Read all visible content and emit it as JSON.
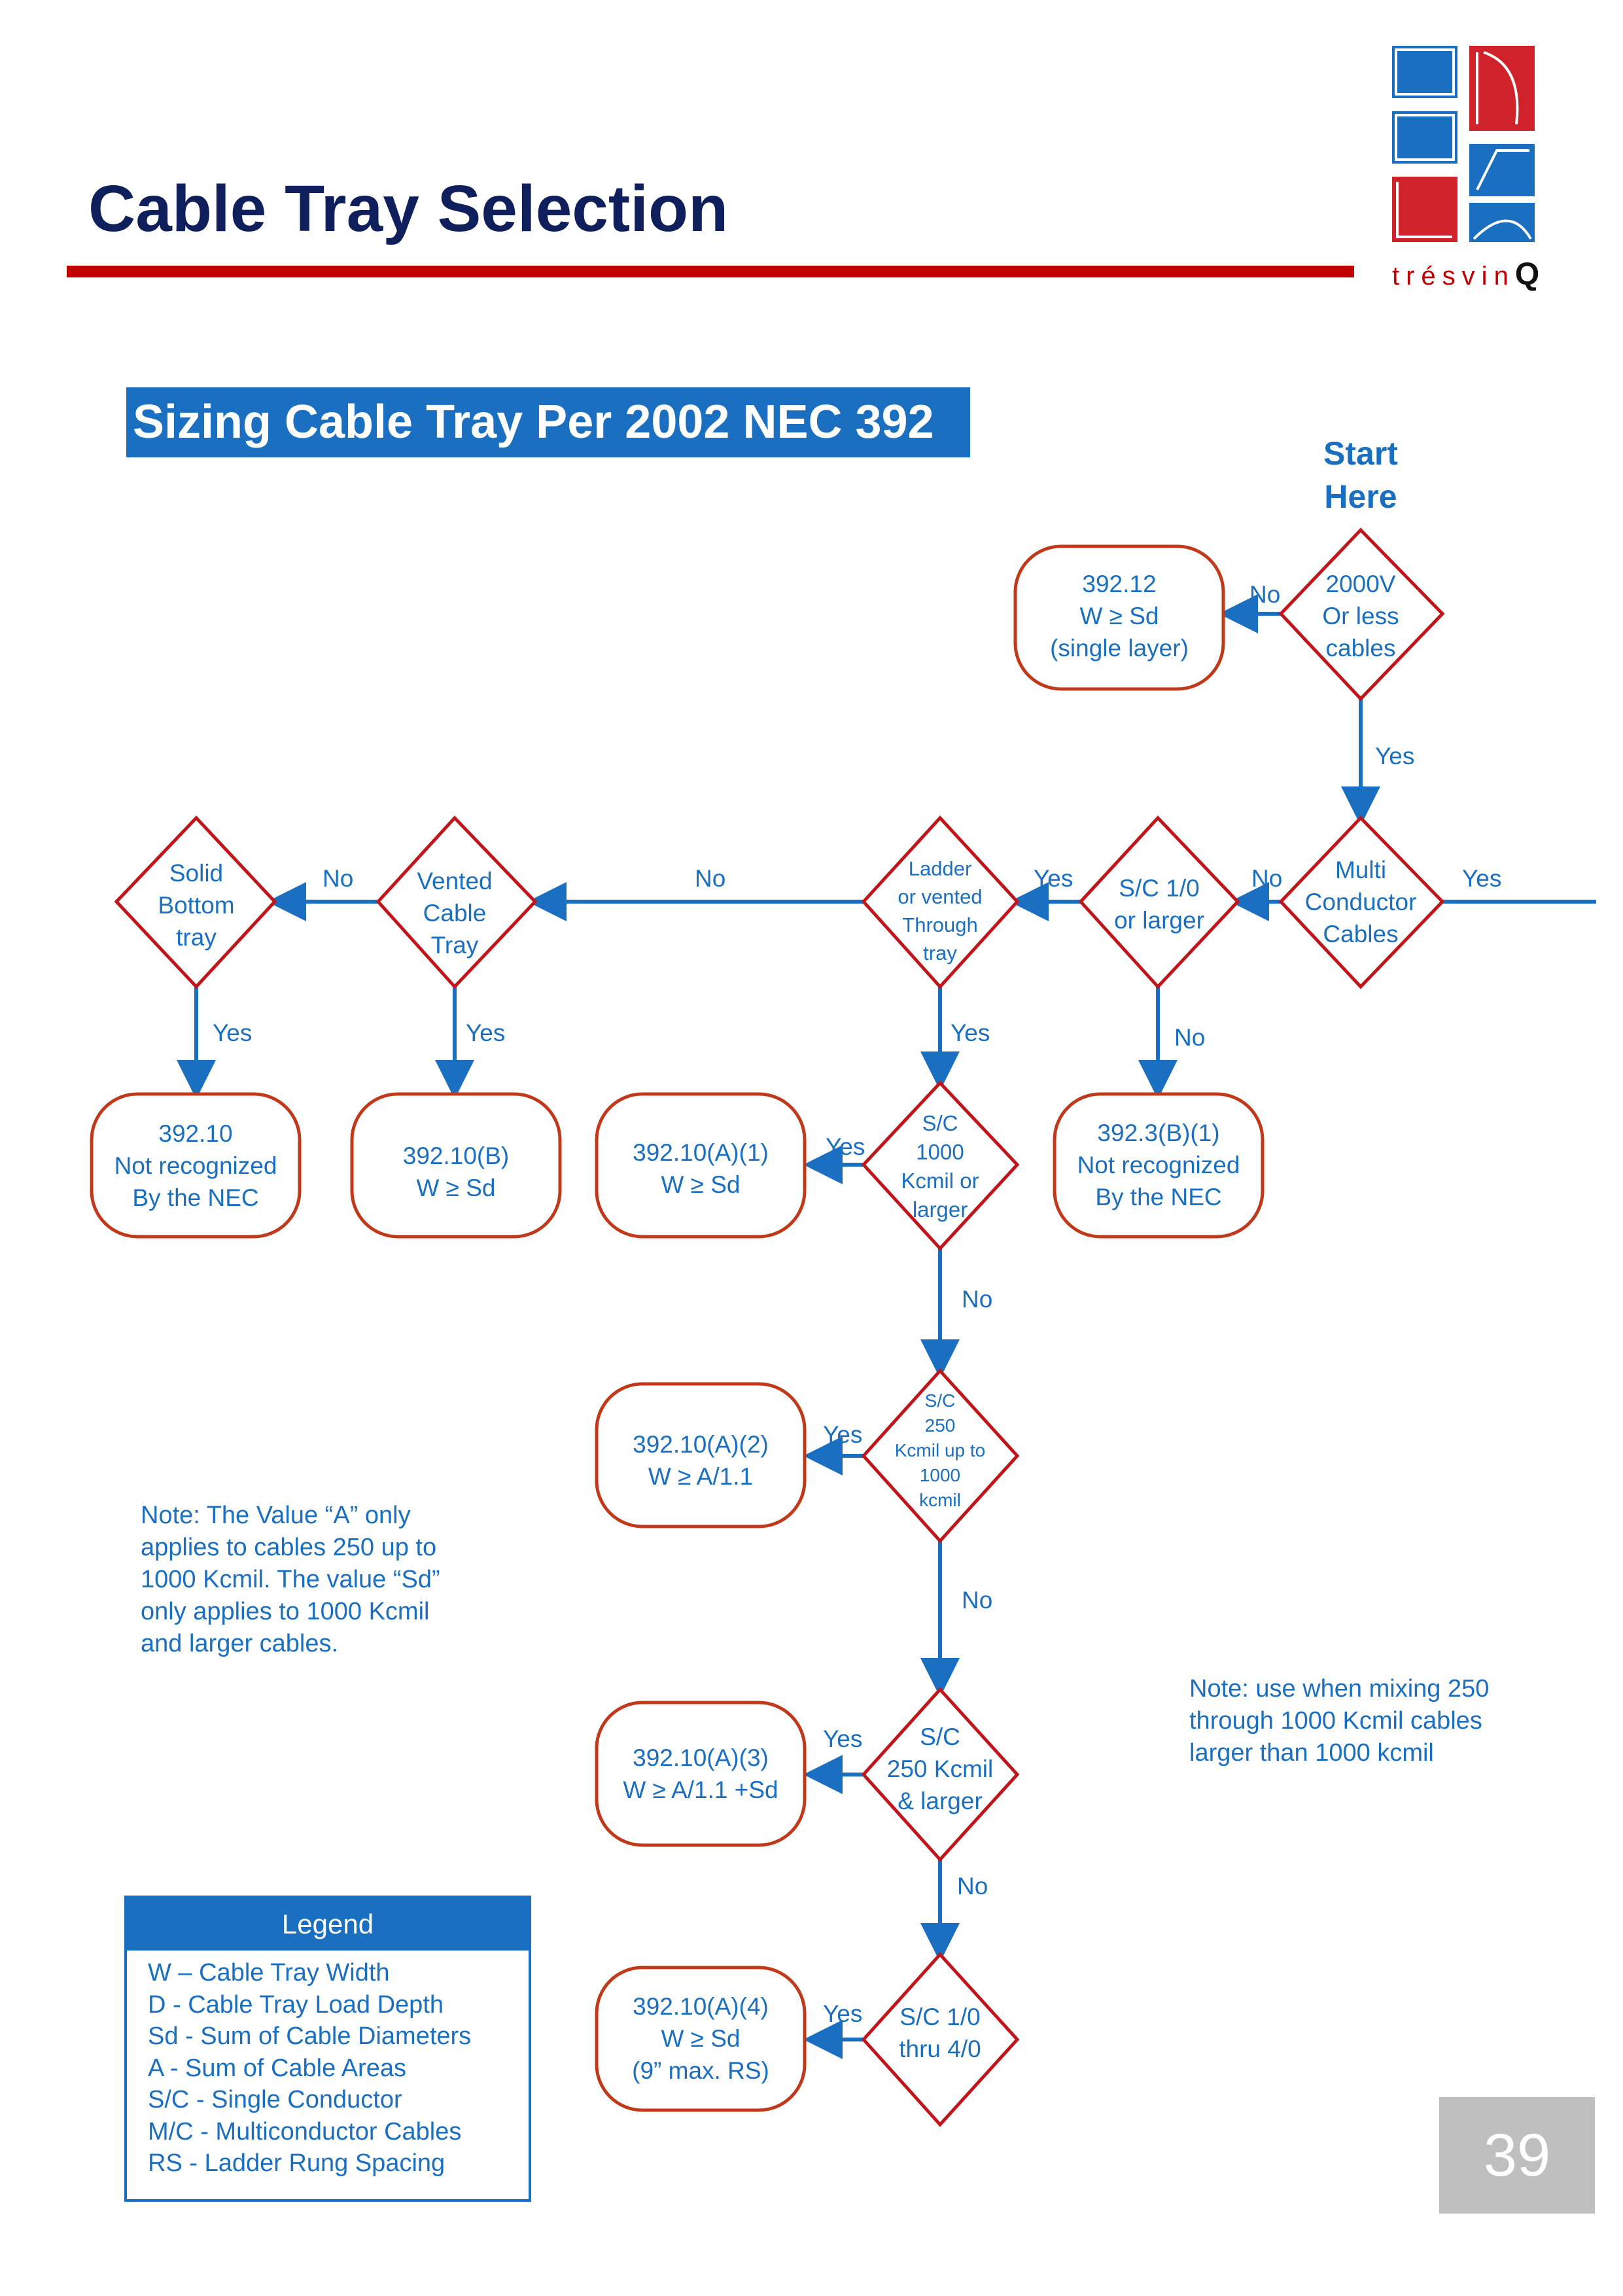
{
  "header": {
    "title": "Cable Tray Selection",
    "logo_text": "trésvin",
    "logo_letter": "Q"
  },
  "subtitle": "Sizing Cable Tray Per 2002 NEC 392",
  "start_label": "Start\nHere",
  "nodes": {
    "d_2000v": "2000V\nOr less\ncables",
    "b_39212": "392.12\nW ≥ Sd\n(single layer)",
    "d_multi": "Multi\nConductor\nCables",
    "d_sc10": "S/C 1/0\nor larger",
    "d_ladder": "Ladder\nor vented\nThrough\ntray",
    "d_vented": "Vented\nCable\nTray",
    "d_solid": "Solid\nBottom\ntray",
    "b_39210": "392.10\nNot recognized\nBy the NEC",
    "b_39210b": "392.10(B)\nW ≥ Sd",
    "b_a1": "392.10(A)(1)\nW ≥ Sd",
    "d_sc1000": "S/C\n1000\nKcmil or\nlarger",
    "b_3923": "392.3(B)(1)\nNot recognized\nBy the NEC",
    "b_a2": "392.10(A)(2)\nW ≥ A/1.1",
    "d_sc250": "S/C\n250\nKcmil up to\n1000\nkcmil",
    "b_a3": "392.10(A)(3)\nW ≥ A/1.1 +Sd",
    "d_sc250l": "S/C\n250 Kcmil\n& larger",
    "b_a4": "392.10(A)(4)\nW ≥ Sd\n(9” max. RS)",
    "d_sc10thru": "S/C 1/0\nthru 4/0"
  },
  "edge_labels": {
    "yes": "Yes",
    "no": "No"
  },
  "notes": {
    "left": "Note: The Value “A” only\napplies to cables 250 up to\n1000 Kcmil. The value “Sd”\nonly applies to 1000 Kcmil\nand larger cables.",
    "right": "Note: use when mixing 250\nthrough 1000 Kcmil cables\nlarger than 1000 kcmil"
  },
  "legend": {
    "title": "Legend",
    "items": [
      "W –  Cable Tray Width",
      "D - Cable Tray Load Depth",
      "Sd - Sum of Cable Diameters",
      "A - Sum of Cable Areas",
      "S/C - Single Conductor",
      "M/C - Multiconductor Cables",
      "RS - Ladder Rung Spacing"
    ]
  },
  "page_number": "39",
  "colors": {
    "title": "#0f1f5c",
    "accent_red": "#c00000",
    "flow_blue": "#1a6fc0",
    "decision_border": "#c0151a",
    "box_border": "#c0391a",
    "page_box": "#bfbfbf"
  }
}
